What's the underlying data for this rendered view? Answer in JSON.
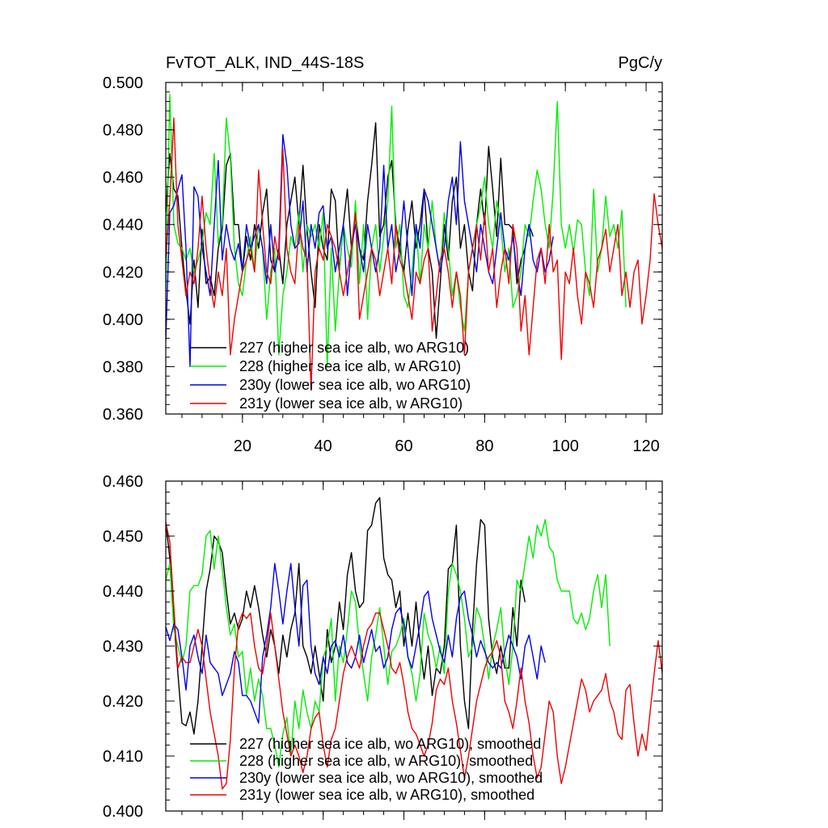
{
  "chart_data": [
    {
      "type": "line",
      "title": "FvTOT_ALK, IND_44S-18S",
      "units": "PgC/y",
      "xlim": [
        1,
        124
      ],
      "ylim": [
        0.36,
        0.5
      ],
      "xticks": [
        20,
        40,
        60,
        80,
        100,
        120
      ],
      "yticks": [
        0.36,
        0.38,
        0.4,
        0.42,
        0.44,
        0.46,
        0.48,
        0.5
      ],
      "ytick_labels": [
        "0.360",
        "0.380",
        "0.400",
        "0.420",
        "0.440",
        "0.460",
        "0.480",
        "0.500"
      ],
      "legend_position": "lower-left",
      "series": [
        {
          "name": "227 (higher sea ice alb, wo ARG10)",
          "color": "#000000",
          "values": [
            0.445,
            0.47,
            0.455,
            0.452,
            0.43,
            0.412,
            0.398,
            0.425,
            0.405,
            0.438,
            0.415,
            0.418,
            0.41,
            0.43,
            0.438,
            0.465,
            0.47,
            0.44,
            0.44,
            0.42,
            0.435,
            0.425,
            0.44,
            0.43,
            0.445,
            0.455,
            0.425,
            0.42,
            0.43,
            0.415,
            0.44,
            0.45,
            0.46,
            0.44,
            0.465,
            0.438,
            0.42,
            0.405,
            0.44,
            0.43,
            0.425,
            0.455,
            0.45,
            0.42,
            0.44,
            0.455,
            0.43,
            0.445,
            0.43,
            0.425,
            0.45,
            0.465,
            0.483,
            0.435,
            0.44,
            0.46,
            0.467,
            0.44,
            0.43,
            0.42,
            0.438,
            0.45,
            0.43,
            0.44,
            0.455,
            0.43,
            0.42,
            0.392,
            0.415,
            0.44,
            0.425,
            0.45,
            0.46,
            0.43,
            0.44,
            0.42,
            0.412,
            0.44,
            0.455,
            0.44,
            0.473,
            0.455,
            0.435,
            0.468,
            0.44,
            0.44,
            0.438,
            0.415,
            0.425,
            0.43,
            0.44,
            0.435
          ]
        },
        {
          "name": "228 (higher sea ice alb, w ARG10)",
          "color": "#00ee00",
          "values": [
            0.412,
            0.495,
            0.44,
            0.432,
            0.43,
            0.425,
            0.43,
            0.42,
            0.425,
            0.432,
            0.445,
            0.44,
            0.47,
            0.432,
            0.44,
            0.485,
            0.468,
            0.43,
            0.415,
            0.41,
            0.425,
            0.435,
            0.42,
            0.44,
            0.43,
            0.4,
            0.42,
            0.43,
            0.385,
            0.41,
            0.42,
            0.435,
            0.43,
            0.445,
            0.42,
            0.44,
            0.435,
            0.44,
            0.43,
            0.445,
            0.38,
            0.43,
            0.395,
            0.42,
            0.44,
            0.43,
            0.422,
            0.45,
            0.415,
            0.44,
            0.4,
            0.43,
            0.44,
            0.42,
            0.435,
            0.45,
            0.49,
            0.43,
            0.44,
            0.41,
            0.405,
            0.42,
            0.44,
            0.415,
            0.44,
            0.43,
            0.45,
            0.43,
            0.42,
            0.445,
            0.43,
            0.41,
            0.42,
            0.405,
            0.395,
            0.42,
            0.43,
            0.44,
            0.448,
            0.46,
            0.44,
            0.43,
            0.45,
            0.44,
            0.42,
            0.43,
            0.405,
            0.41,
            0.42,
            0.44,
            0.435,
            0.45,
            0.463,
            0.455,
            0.44,
            0.43,
            0.455,
            0.492,
            0.44,
            0.43,
            0.44,
            0.428,
            0.442,
            0.44,
            0.42,
            0.41,
            0.455,
            0.42,
            0.43,
            0.452,
            0.435,
            0.44,
            0.43,
            0.446,
            0.405
          ]
        },
        {
          "name": "230y (lower sea ice alb, wo ARG10)",
          "color": "#0000ee",
          "values": [
            0.391,
            0.445,
            0.448,
            0.455,
            0.461,
            0.43,
            0.38,
            0.456,
            0.452,
            0.43,
            0.42,
            0.41,
            0.44,
            0.467,
            0.425,
            0.44,
            0.43,
            0.425,
            0.432,
            0.42,
            0.44,
            0.43,
            0.435,
            0.44,
            0.43,
            0.415,
            0.44,
            0.42,
            0.43,
            0.478,
            0.465,
            0.44,
            0.43,
            0.432,
            0.45,
            0.42,
            0.44,
            0.43,
            0.445,
            0.448,
            0.43,
            0.435,
            0.42,
            0.43,
            0.44,
            0.41,
            0.43,
            0.44,
            0.43,
            0.42,
            0.44,
            0.43,
            0.42,
            0.43,
            0.465,
            0.43,
            0.44,
            0.42,
            0.43,
            0.45,
            0.43,
            0.41,
            0.44,
            0.43,
            0.455,
            0.45,
            0.44,
            0.43,
            0.42,
            0.43,
            0.45,
            0.46,
            0.44,
            0.475,
            0.45,
            0.44,
            0.43,
            0.42,
            0.44,
            0.43,
            0.42,
            0.415,
            0.43,
            0.445,
            0.43,
            0.425,
            0.435,
            0.42,
            0.41,
            0.43,
            0.44,
            0.425,
            0.42,
            0.43,
            0.42,
            0.425,
            0.435
          ]
        },
        {
          "name": "231y (lower sea ice alb, w ARG10)",
          "color": "#ee0000",
          "values": [
            0.425,
            0.45,
            0.485,
            0.44,
            0.425,
            0.41,
            0.42,
            0.415,
            0.43,
            0.452,
            0.43,
            0.415,
            0.405,
            0.42,
            0.41,
            0.43,
            0.385,
            0.4,
            0.41,
            0.42,
            0.425,
            0.43,
            0.42,
            0.463,
            0.44,
            0.42,
            0.415,
            0.435,
            0.425,
            0.472,
            0.43,
            0.42,
            0.415,
            0.44,
            0.43,
            0.425,
            0.37,
            0.42,
            0.43,
            0.425,
            0.44,
            0.435,
            0.43,
            0.42,
            0.41,
            0.42,
            0.43,
            0.445,
            0.4,
            0.41,
            0.42,
            0.43,
            0.425,
            0.41,
            0.42,
            0.43,
            0.415,
            0.44,
            0.425,
            0.42,
            0.41,
            0.4,
            0.42,
            0.415,
            0.425,
            0.43,
            0.395,
            0.41,
            0.425,
            0.43,
            0.42,
            0.405,
            0.42,
            0.41,
            0.385,
            0.42,
            0.43,
            0.44,
            0.425,
            0.445,
            0.42,
            0.43,
            0.405,
            0.42,
            0.43,
            0.415,
            0.44,
            0.43,
            0.395,
            0.41,
            0.385,
            0.405,
            0.425,
            0.43,
            0.415,
            0.44,
            0.42,
            0.425,
            0.383,
            0.42,
            0.415,
            0.43,
            0.41,
            0.398,
            0.42,
            0.415,
            0.405,
            0.425,
            0.43,
            0.438,
            0.42,
            0.43,
            0.44,
            0.41,
            0.42,
            0.405,
            0.42,
            0.425,
            0.398,
            0.41,
            0.425,
            0.453,
            0.44,
            0.43,
            0.393
          ]
        }
      ]
    },
    {
      "type": "line",
      "xlim": [
        1,
        124
      ],
      "ylim": [
        0.4,
        0.46
      ],
      "xticks": [
        20,
        40,
        60,
        80,
        100,
        120
      ],
      "yticks": [
        0.4,
        0.41,
        0.42,
        0.43,
        0.44,
        0.45,
        0.46
      ],
      "ytick_labels": [
        "0.400",
        "0.410",
        "0.420",
        "0.430",
        "0.440",
        "0.450",
        "0.460"
      ],
      "legend_position": "lower-left",
      "series": [
        {
          "name": "227 (higher sea ice alb, wo ARG10), smoothed",
          "color": "#000000",
          "values": [
            0.4525,
            0.446,
            0.435,
            0.425,
            0.416,
            0.4155,
            0.418,
            0.414,
            0.42,
            0.43,
            0.44,
            0.444,
            0.45,
            0.449,
            0.447,
            0.44,
            0.434,
            0.436,
            0.433,
            0.435,
            0.44,
            0.437,
            0.441,
            0.437,
            0.432,
            0.428,
            0.433,
            0.43,
            0.425,
            0.432,
            0.428,
            0.433,
            0.436,
            0.445,
            0.43,
            0.428,
            0.425,
            0.43,
            0.425,
            0.42,
            0.433,
            0.427,
            0.43,
            0.438,
            0.433,
            0.443,
            0.447,
            0.44,
            0.437,
            0.438,
            0.451,
            0.452,
            0.456,
            0.457,
            0.446,
            0.443,
            0.442,
            0.437,
            0.44,
            0.43,
            0.436,
            0.43,
            0.438,
            0.43,
            0.424,
            0.43,
            0.421,
            0.426,
            0.425,
            0.43,
            0.444,
            0.445,
            0.452,
            0.43,
            0.42,
            0.415,
            0.433,
            0.445,
            0.453,
            0.452,
            0.435,
            0.428,
            0.425,
            0.43,
            0.426,
            0.426,
            0.437,
            0.43,
            0.442,
            0.438
          ]
        },
        {
          "name": "228 (higher sea ice alb, w ARG10), smoothed",
          "color": "#00ee00",
          "values": [
            0.442,
            0.445,
            0.433,
            0.43,
            0.427,
            0.43,
            0.44,
            0.441,
            0.441,
            0.443,
            0.45,
            0.451,
            0.444,
            0.45,
            0.444,
            0.437,
            0.432,
            0.434,
            0.428,
            0.429,
            0.421,
            0.426,
            0.42,
            0.424,
            0.421,
            0.415,
            0.415,
            0.412,
            0.408,
            0.414,
            0.417,
            0.41,
            0.42,
            0.415,
            0.422,
            0.418,
            0.415,
            0.42,
            0.418,
            0.428,
            0.43,
            0.435,
            0.42,
            0.43,
            0.427,
            0.433,
            0.44,
            0.438,
            0.43,
            0.425,
            0.42,
            0.428,
            0.432,
            0.437,
            0.43,
            0.423,
            0.429,
            0.43,
            0.432,
            0.435,
            0.428,
            0.425,
            0.42,
            0.425,
            0.436,
            0.432,
            0.43,
            0.426,
            0.43,
            0.425,
            0.44,
            0.445,
            0.443,
            0.44,
            0.435,
            0.428,
            0.43,
            0.437,
            0.435,
            0.43,
            0.424,
            0.43,
            0.433,
            0.437,
            0.428,
            0.423,
            0.43,
            0.442,
            0.44,
            0.445,
            0.45,
            0.446,
            0.452,
            0.45,
            0.453,
            0.448,
            0.447,
            0.442,
            0.44,
            0.44,
            0.44,
            0.435,
            0.434,
            0.436,
            0.433,
            0.435,
            0.44,
            0.443,
            0.437,
            0.443,
            0.43
          ]
        },
        {
          "name": "230y (lower sea ice alb, wo ARG10), smoothed",
          "color": "#0000ee",
          "values": [
            0.4335,
            0.431,
            0.434,
            0.433,
            0.428,
            0.422,
            0.43,
            0.432,
            0.428,
            0.425,
            0.432,
            0.427,
            0.426,
            0.425,
            0.421,
            0.423,
            0.425,
            0.429,
            0.427,
            0.421,
            0.421,
            0.42,
            0.418,
            0.416,
            0.428,
            0.432,
            0.437,
            0.445,
            0.44,
            0.434,
            0.44,
            0.445,
            0.437,
            0.43,
            0.441,
            0.442,
            0.43,
            0.425,
            0.423,
            0.428,
            0.425,
            0.43,
            0.431,
            0.428,
            0.432,
            0.427,
            0.426,
            0.428,
            0.432,
            0.427,
            0.43,
            0.433,
            0.429,
            0.43,
            0.426,
            0.428,
            0.433,
            0.436,
            0.437,
            0.434,
            0.428,
            0.426,
            0.43,
            0.434,
            0.439,
            0.44,
            0.435,
            0.432,
            0.429,
            0.427,
            0.432,
            0.428,
            0.435,
            0.439,
            0.44,
            0.435,
            0.432,
            0.428,
            0.431,
            0.429,
            0.427,
            0.426,
            0.427,
            0.426,
            0.429,
            0.432,
            0.43,
            0.428,
            0.424,
            0.43,
            0.432,
            0.428,
            0.424,
            0.43,
            0.427
          ]
        },
        {
          "name": "231y (lower sea ice alb, w ARG10), smoothed",
          "color": "#ee0000",
          "values": [
            0.4525,
            0.449,
            0.437,
            0.426,
            0.428,
            0.427,
            0.427,
            0.43,
            0.433,
            0.43,
            0.424,
            0.418,
            0.414,
            0.41,
            0.404,
            0.405,
            0.413,
            0.426,
            0.434,
            0.436,
            0.435,
            0.436,
            0.43,
            0.426,
            0.425,
            0.43,
            0.436,
            0.43,
            0.424,
            0.418,
            0.414,
            0.41,
            0.412,
            0.41,
            0.407,
            0.41,
            0.415,
            0.417,
            0.418,
            0.412,
            0.408,
            0.413,
            0.415,
            0.42,
            0.425,
            0.428,
            0.43,
            0.428,
            0.426,
            0.43,
            0.433,
            0.434,
            0.436,
            0.436,
            0.433,
            0.43,
            0.426,
            0.425,
            0.427,
            0.423,
            0.418,
            0.415,
            0.414,
            0.412,
            0.41,
            0.412,
            0.416,
            0.422,
            0.424,
            0.423,
            0.426,
            0.42,
            0.416,
            0.411,
            0.406,
            0.41,
            0.415,
            0.42,
            0.423,
            0.426,
            0.428,
            0.429,
            0.431,
            0.428,
            0.42,
            0.418,
            0.415,
            0.42,
            0.426,
            0.42,
            0.416,
            0.41,
            0.406,
            0.408,
            0.414,
            0.42,
            0.418,
            0.41,
            0.405,
            0.408,
            0.412,
            0.416,
            0.42,
            0.424,
            0.422,
            0.418,
            0.42,
            0.421,
            0.422,
            0.425,
            0.42,
            0.418,
            0.414,
            0.413,
            0.422,
            0.423,
            0.416,
            0.41,
            0.414,
            0.411,
            0.418,
            0.425,
            0.431,
            0.425
          ]
        }
      ]
    }
  ]
}
